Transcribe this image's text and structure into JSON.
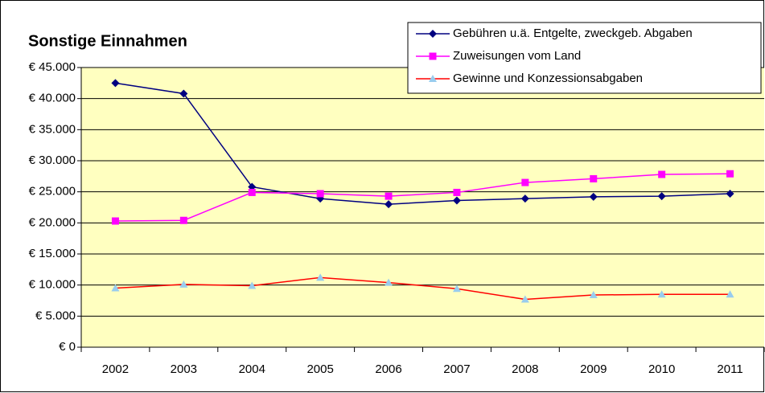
{
  "chart_data": {
    "type": "line",
    "title": "Sonstige Einnahmen",
    "categories": [
      "2002",
      "2003",
      "2004",
      "2005",
      "2006",
      "2007",
      "2008",
      "2009",
      "2010",
      "2011"
    ],
    "series": [
      {
        "name": "Gebühren u.ä. Entgelte, zweckgeb. Abgaben",
        "color": "#000080",
        "marker": "diamond",
        "marker_color": "#000080",
        "values": [
          42500,
          40800,
          25800,
          23900,
          23000,
          23600,
          23900,
          24200,
          24300,
          24700
        ]
      },
      {
        "name": "Zuweisungen vom Land",
        "color": "#ff00ff",
        "marker": "square",
        "marker_color": "#ff00ff",
        "values": [
          20300,
          20400,
          24900,
          24700,
          24300,
          24900,
          26500,
          27100,
          27800,
          27900
        ]
      },
      {
        "name": "Gewinne und Konzessionsabgaben",
        "color": "#ff0000",
        "marker": "triangle",
        "marker_color": "#99ccee",
        "values": [
          9500,
          10100,
          9900,
          11200,
          10400,
          9400,
          7700,
          8400,
          8500,
          8500
        ]
      }
    ],
    "ylim": [
      0,
      45000
    ],
    "yticks": [
      {
        "value": 0,
        "label": "€ 0"
      },
      {
        "value": 5000,
        "label": "€ 5.000"
      },
      {
        "value": 10000,
        "label": "€ 10.000"
      },
      {
        "value": 15000,
        "label": "€ 15.000"
      },
      {
        "value": 20000,
        "label": "€ 20.000"
      },
      {
        "value": 25000,
        "label": "€ 25.000"
      },
      {
        "value": 30000,
        "label": "€ 30.000"
      },
      {
        "value": 35000,
        "label": "€ 35.000"
      },
      {
        "value": 40000,
        "label": "€ 40.000"
      },
      {
        "value": 45000,
        "label": "€ 45.000"
      }
    ],
    "grid": true,
    "legend": "top-right",
    "plot_background": "#ffffc0"
  }
}
